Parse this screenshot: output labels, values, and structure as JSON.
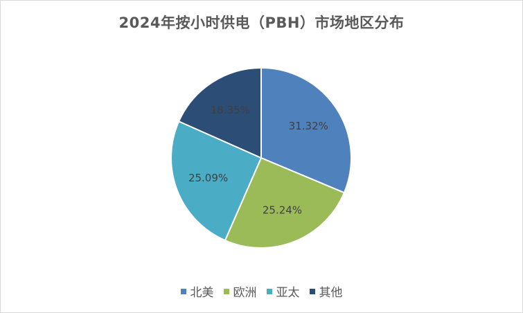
{
  "chart_data": {
    "type": "pie",
    "title": "2024年按小时供电（PBH）市场地区分布",
    "categories": [
      "北美",
      "欧洲",
      "亚太",
      "其他"
    ],
    "values": [
      31.32,
      25.24,
      25.09,
      18.35
    ],
    "data_labels": [
      "31.32%",
      "25.24%",
      "25.09%",
      "18.35%"
    ],
    "colors": [
      "#4f81bd",
      "#9bbb59",
      "#4bacc6",
      "#2c4d75"
    ],
    "label_color": "#404040",
    "start_angle": "12 o'clock",
    "direction": "clockwise",
    "legend_placement": "bottom"
  }
}
